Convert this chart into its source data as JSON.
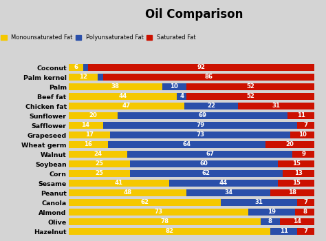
{
  "title": "Oil Comparison",
  "background_color": "#d4d4d4",
  "legend_items": [
    "Monounsaturated Fat",
    "Polyunsaturated Fat",
    "Saturated Fat"
  ],
  "legend_colors": [
    "#f5c800",
    "#2a4faa",
    "#cc1100"
  ],
  "oils": [
    "Coconut",
    "Palm kernel",
    "Palm",
    "Beef fat",
    "Chicken fat",
    "Sunflower",
    "Safflower",
    "Grapeseed",
    "Wheat germ",
    "Walnut",
    "Soybean",
    "Corn",
    "Sesame",
    "Peanut",
    "Canola",
    "Almond",
    "Olive",
    "Hazelnut"
  ],
  "mono": [
    6,
    12,
    38,
    44,
    47,
    20,
    14,
    17,
    16,
    24,
    25,
    25,
    41,
    48,
    62,
    73,
    78,
    82
  ],
  "poly": [
    2,
    2,
    10,
    4,
    22,
    69,
    79,
    73,
    64,
    67,
    60,
    62,
    44,
    34,
    31,
    19,
    8,
    11
  ],
  "sat": [
    92,
    86,
    52,
    52,
    31,
    11,
    7,
    10,
    20,
    9,
    15,
    13,
    15,
    18,
    7,
    8,
    14,
    7
  ],
  "mono_color": "#f5c800",
  "poly_color": "#2a4faa",
  "sat_color": "#cc1100",
  "bar_height": 0.72,
  "label_fontsize": 6.8,
  "bar_label_fontsize": 6.2,
  "title_fontsize": 12
}
